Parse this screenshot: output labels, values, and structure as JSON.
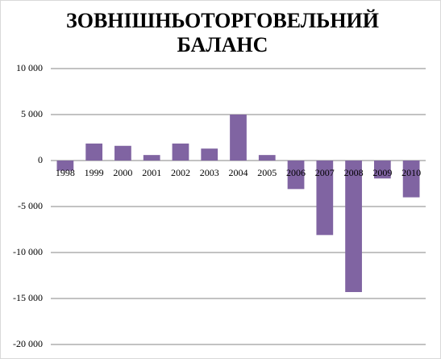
{
  "chart_data": {
    "type": "bar",
    "title": "ЗОВНІШНЬОТОРГОВЕЛЬНИЙ БАЛАНС",
    "categories": [
      "1998",
      "1999",
      "2000",
      "2001",
      "2002",
      "2003",
      "2004",
      "2005",
      "2006",
      "2007",
      "2008",
      "2009",
      "2010"
    ],
    "values": [
      -1100,
      1850,
      1600,
      600,
      1850,
      1300,
      5000,
      600,
      -3100,
      -8100,
      -14300,
      -1950,
      -4000
    ],
    "color": "#8064a2",
    "ylim": [
      -20000,
      10000
    ],
    "yticks": [
      {
        "value": -20000,
        "label": "-20 000"
      },
      {
        "value": -15000,
        "label": "-15 000"
      },
      {
        "value": -10000,
        "label": "-10 000"
      },
      {
        "value": -5000,
        "label": "-5 000"
      },
      0,
      {
        "value": 5000,
        "label": "5 000"
      },
      {
        "value": 10000,
        "label": "10 000"
      }
    ],
    "grid": true
  }
}
